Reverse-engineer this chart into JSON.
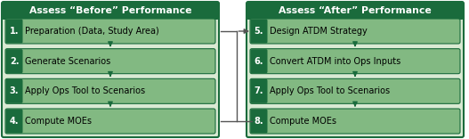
{
  "title_before": "Assess “Before” Performance",
  "title_after": "Assess “After” Performance",
  "before_items": [
    "Preparation (Data, Study Area)",
    "Generate Scenarios",
    "Apply Ops Tool to Scenarios",
    "Compute MOEs"
  ],
  "after_items": [
    "Design ATDM Strategy",
    "Convert ATDM into Ops Inputs",
    "Apply Ops Tool to Scenarios",
    "Compute MOEs"
  ],
  "before_numbers": [
    "1.",
    "2.",
    "3.",
    "4."
  ],
  "after_numbers": [
    "5.",
    "6.",
    "7.",
    "8."
  ],
  "dark_green": "#1a6b3c",
  "light_green_bg": "#d9ead3",
  "item_green": "#82b982",
  "title_fontsize": 7.8,
  "item_fontsize": 7.0,
  "num_fontsize": 7.0,
  "fig_bg": "#f0f0f0",
  "panel_border": "#1a6b3c",
  "connector_color": "#555555"
}
